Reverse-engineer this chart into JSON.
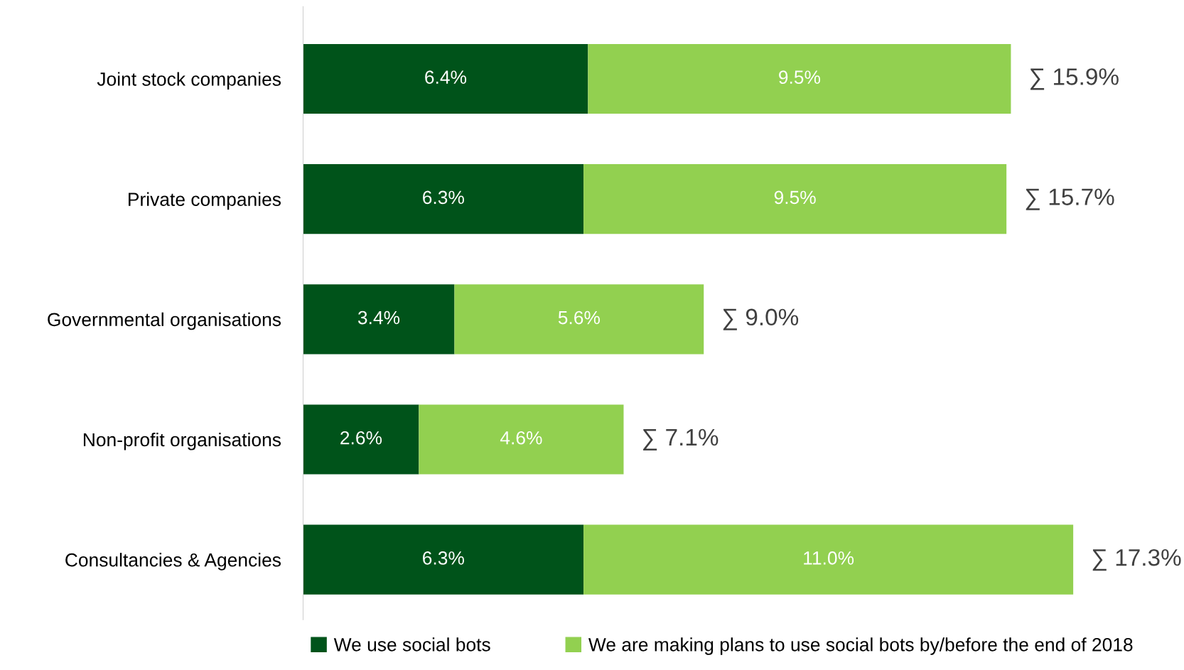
{
  "chart_data": {
    "type": "bar",
    "orientation": "horizontal",
    "stacked": true,
    "legend": "bottom",
    "grid": false,
    "categories": [
      "Joint stock companies",
      "Private companies",
      "Governmental organisations",
      "Non-profit organisations",
      "Consultancies & Agencies"
    ],
    "series": [
      {
        "name": "We use social bots",
        "color": "#00531a",
        "values": [
          6.4,
          6.3,
          3.4,
          2.6,
          6.3
        ],
        "value_labels": [
          "6.4%",
          "6.3%",
          "3.4%",
          "2.6%",
          "6.3%"
        ]
      },
      {
        "name": "We are making plans to use social bots by/before the end of 2018",
        "color": "#92d050",
        "values": [
          9.5,
          9.5,
          5.6,
          4.6,
          11.0
        ],
        "value_labels": [
          "9.5%",
          "9.5%",
          "5.6%",
          "4.6%",
          "11.0%"
        ]
      }
    ],
    "totals": [
      "∑ 15.9%",
      "∑ 15.7%",
      "∑ 9.0%",
      "∑ 7.1%",
      "∑ 17.3%"
    ]
  }
}
